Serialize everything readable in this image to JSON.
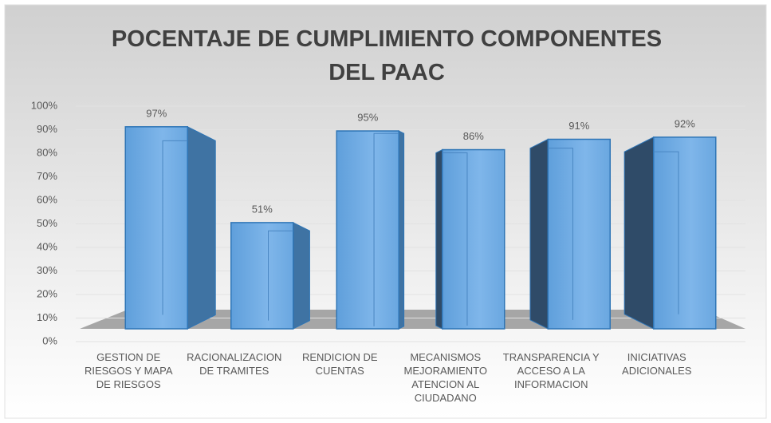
{
  "chart_data": {
    "type": "bar3d",
    "title": "POCENTAJE DE CUMPLIMIENTO COMPONENTES DEL PAAC",
    "categories": [
      "GESTION  DE RIESGOS Y MAPA DE RIESGOS",
      "RACIONALIZACION DE TRAMITES",
      "RENDICION DE CUENTAS",
      "MECANISMOS MEJORAMIENTO ATENCION AL CIUDADANO",
      "TRANSPARENCIA Y ACCESO A LA INFORMACION",
      "INICIATIVAS ADICIONALES"
    ],
    "values": [
      97,
      51,
      95,
      86,
      91,
      92
    ],
    "value_labels": [
      "97%",
      "51%",
      "95%",
      "86%",
      "91%",
      "92%"
    ],
    "color": "#5b9bd5",
    "ylim": [
      0,
      100
    ],
    "yticks": [
      {
        "value": 0,
        "label": "0%"
      },
      {
        "value": 10,
        "label": "10%"
      },
      {
        "value": 20,
        "label": "20%"
      },
      {
        "value": 30,
        "label": "30%"
      },
      {
        "value": 40,
        "label": "40%"
      },
      {
        "value": 50,
        "label": "50%"
      },
      {
        "value": 60,
        "label": "60%"
      },
      {
        "value": 70,
        "label": "70%"
      },
      {
        "value": 80,
        "label": "80%"
      },
      {
        "value": 90,
        "label": "90%"
      },
      {
        "value": 100,
        "label": "100%"
      }
    ],
    "grid": true
  }
}
